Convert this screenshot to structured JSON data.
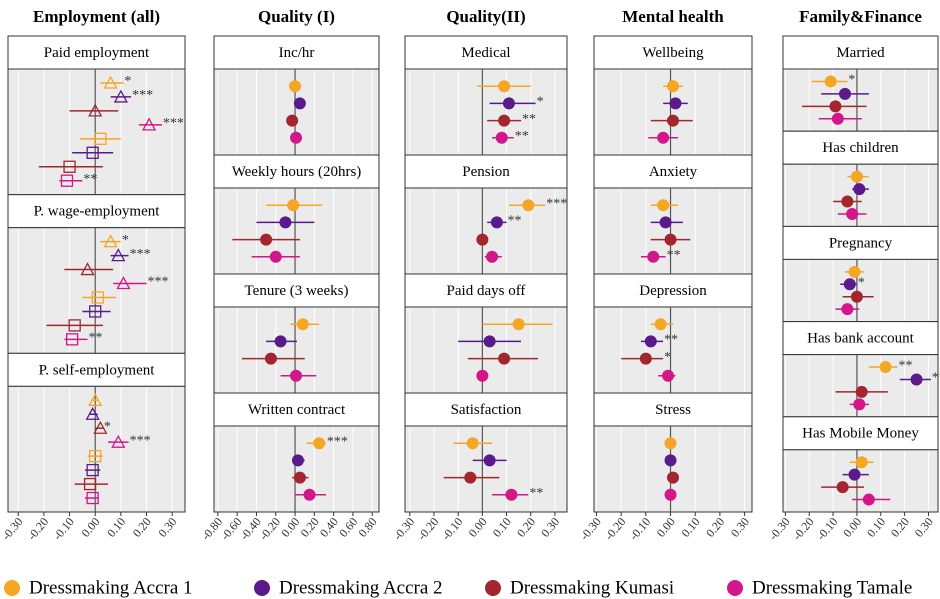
{
  "legend": [
    {
      "name": "Dressmaking Accra 1",
      "color": "#f5a623"
    },
    {
      "name": "Dressmaking Accra 2",
      "color": "#5b1a8c"
    },
    {
      "name": "Dressmaking Kumasi",
      "color": "#a3262f"
    },
    {
      "name": "Dressmaking Tamale",
      "color": "#d4168b"
    }
  ],
  "chart_data": [
    {
      "type": "dot",
      "title": "Employment (all)",
      "markers": [
        "triangle",
        "square"
      ],
      "xlim": [
        -0.34,
        0.35
      ],
      "xticks": [
        {
          "value": -0.3,
          "label": "-0.30"
        },
        {
          "value": -0.2,
          "label": "-0.20"
        },
        {
          "value": -0.1,
          "label": "-0.10"
        },
        {
          "value": 0,
          "label": "0.00"
        },
        {
          "value": 0.1,
          "label": "0.10"
        },
        {
          "value": 0.2,
          "label": "0.20"
        },
        {
          "value": 0.3,
          "label": "0.30"
        }
      ],
      "facets": [
        {
          "label": "Paid employment",
          "values": [
            0.06,
            0.1,
            0.0,
            0.21,
            0.02,
            -0.01,
            -0.1,
            -0.11
          ],
          "lower": [
            0.02,
            0.06,
            -0.1,
            0.17,
            -0.06,
            -0.09,
            -0.22,
            -0.14
          ],
          "upper": [
            0.11,
            0.14,
            0.09,
            0.26,
            0.1,
            0.07,
            0.03,
            -0.05
          ],
          "stars": [
            "*",
            "***",
            null,
            "***",
            null,
            null,
            null,
            "**"
          ]
        },
        {
          "label": "P. wage-employment",
          "values": [
            0.06,
            0.09,
            -0.03,
            0.11,
            0.01,
            0.0,
            -0.08,
            -0.09
          ],
          "lower": [
            0.02,
            0.06,
            -0.12,
            0.07,
            -0.05,
            -0.05,
            -0.19,
            -0.12
          ],
          "upper": [
            0.1,
            0.13,
            0.07,
            0.2,
            0.08,
            0.06,
            0.03,
            -0.03
          ],
          "stars": [
            "*",
            "***",
            null,
            "***",
            null,
            null,
            null,
            "**"
          ]
        },
        {
          "label": "P. self-employment",
          "values": [
            0.0,
            -0.01,
            0.02,
            0.09,
            0.0,
            -0.01,
            -0.02,
            -0.01
          ],
          "lower": [
            -0.01,
            -0.02,
            0.0,
            0.05,
            -0.03,
            -0.04,
            -0.08,
            -0.04
          ],
          "upper": [
            0.01,
            0.01,
            0.03,
            0.13,
            0.03,
            0.02,
            0.05,
            0.01
          ],
          "stars": [
            null,
            null,
            "*",
            "***",
            null,
            null,
            null,
            null
          ]
        }
      ]
    },
    {
      "type": "dot",
      "title": "Quality (I)",
      "markers": [
        "circle"
      ],
      "xlim": [
        -0.84,
        0.87
      ],
      "xticks": [
        {
          "value": -0.8,
          "label": "-0.80"
        },
        {
          "value": -0.6,
          "label": "-0.60"
        },
        {
          "value": -0.4,
          "label": "-0.40"
        },
        {
          "value": -0.2,
          "label": "-0.20"
        },
        {
          "value": 0,
          "label": "0.00"
        },
        {
          "value": 0.2,
          "label": "0.20"
        },
        {
          "value": 0.4,
          "label": "0.40"
        },
        {
          "value": 0.6,
          "label": "0.60"
        },
        {
          "value": 0.8,
          "label": "0.80"
        }
      ],
      "facets": [
        {
          "label": "Inc/hr",
          "values": [
            0.0,
            0.05,
            -0.03,
            0.01
          ],
          "lower": [
            -0.02,
            0.03,
            -0.05,
            -0.01
          ],
          "upper": [
            0.02,
            0.07,
            -0.01,
            0.03
          ],
          "stars": [
            null,
            null,
            null,
            null
          ]
        },
        {
          "label": "Weekly hours (20hrs)",
          "values": [
            -0.02,
            -0.1,
            -0.3,
            -0.2
          ],
          "lower": [
            -0.3,
            -0.4,
            -0.65,
            -0.45
          ],
          "upper": [
            0.28,
            0.2,
            0.05,
            0.05
          ],
          "stars": [
            null,
            null,
            null,
            null
          ]
        },
        {
          "label": "Tenure (3 weeks)",
          "values": [
            0.08,
            -0.15,
            -0.25,
            0.01
          ],
          "lower": [
            -0.05,
            -0.3,
            -0.55,
            -0.15
          ],
          "upper": [
            0.25,
            0.02,
            0.1,
            0.22
          ],
          "stars": [
            null,
            null,
            null,
            null
          ]
        },
        {
          "label": "Written contract",
          "values": [
            0.25,
            0.03,
            0.05,
            0.15
          ],
          "lower": [
            0.12,
            -0.03,
            -0.03,
            0.0
          ],
          "upper": [
            0.32,
            0.1,
            0.14,
            0.32
          ],
          "stars": [
            "***",
            null,
            null,
            null
          ]
        }
      ]
    },
    {
      "type": "dot",
      "title": "Quality(II)",
      "markers": [
        "circle"
      ],
      "xlim": [
        -0.32,
        0.35
      ],
      "xticks": [
        {
          "value": -0.3,
          "label": "-0.30"
        },
        {
          "value": -0.2,
          "label": "-0.20"
        },
        {
          "value": -0.1,
          "label": "-0.10"
        },
        {
          "value": 0,
          "label": "0.00"
        },
        {
          "value": 0.1,
          "label": "0.10"
        },
        {
          "value": 0.2,
          "label": "0.20"
        },
        {
          "value": 0.3,
          "label": "0.30"
        }
      ],
      "facets": [
        {
          "label": "Medical",
          "values": [
            0.09,
            0.11,
            0.09,
            0.08
          ],
          "lower": [
            -0.02,
            0.03,
            0.02,
            0.04
          ],
          "upper": [
            0.2,
            0.22,
            0.16,
            0.13
          ],
          "stars": [
            null,
            "*",
            "**",
            "**"
          ]
        },
        {
          "label": "Pension",
          "values": [
            0.19,
            0.06,
            0.0,
            0.04
          ],
          "lower": [
            0.11,
            0.02,
            -0.01,
            0.01
          ],
          "upper": [
            0.26,
            0.1,
            0.01,
            0.08
          ],
          "stars": [
            "***",
            "**",
            null,
            null
          ]
        },
        {
          "label": "Paid days off",
          "values": [
            0.15,
            0.03,
            0.09,
            0.0
          ],
          "lower": [
            0.0,
            -0.1,
            -0.06,
            -0.01
          ],
          "upper": [
            0.29,
            0.16,
            0.23,
            0.01
          ],
          "stars": [
            null,
            null,
            null,
            null
          ]
        },
        {
          "label": "Satisfaction",
          "values": [
            -0.04,
            0.03,
            -0.05,
            0.12
          ],
          "lower": [
            -0.12,
            -0.04,
            -0.16,
            0.04
          ],
          "upper": [
            0.04,
            0.1,
            0.07,
            0.19
          ],
          "stars": [
            null,
            null,
            null,
            "**"
          ]
        }
      ]
    },
    {
      "type": "dot",
      "title": "Mental health",
      "markers": [
        "circle"
      ],
      "xlim": [
        -0.31,
        0.33
      ],
      "xticks": [
        {
          "value": -0.3,
          "label": "-0.30"
        },
        {
          "value": -0.2,
          "label": "-0.20"
        },
        {
          "value": -0.1,
          "label": "-0.10"
        },
        {
          "value": 0,
          "label": "0.00"
        },
        {
          "value": 0.1,
          "label": "0.10"
        },
        {
          "value": 0.2,
          "label": "0.20"
        },
        {
          "value": 0.3,
          "label": "0.30"
        }
      ],
      "facets": [
        {
          "label": "Wellbeing",
          "values": [
            0.01,
            0.02,
            0.01,
            -0.03
          ],
          "lower": [
            -0.03,
            -0.03,
            -0.08,
            -0.09
          ],
          "upper": [
            0.05,
            0.07,
            0.09,
            0.03
          ],
          "stars": [
            null,
            null,
            null,
            null
          ]
        },
        {
          "label": "Anxiety",
          "values": [
            -0.03,
            -0.02,
            0.0,
            -0.07
          ],
          "lower": [
            -0.08,
            -0.08,
            -0.08,
            -0.12
          ],
          "upper": [
            0.03,
            0.05,
            0.08,
            -0.02
          ],
          "stars": [
            null,
            null,
            null,
            "**"
          ]
        },
        {
          "label": "Depression",
          "values": [
            -0.04,
            -0.08,
            -0.1,
            -0.01
          ],
          "lower": [
            -0.08,
            -0.12,
            -0.2,
            -0.05
          ],
          "upper": [
            0.01,
            -0.03,
            -0.03,
            0.02
          ],
          "stars": [
            null,
            "**",
            "*",
            null
          ]
        },
        {
          "label": "Stress",
          "values": [
            0.0,
            0.0,
            0.01,
            0.0
          ],
          "lower": [
            -0.01,
            -0.01,
            0.0,
            -0.01
          ],
          "upper": [
            0.01,
            0.01,
            0.02,
            0.01
          ],
          "stars": [
            null,
            null,
            null,
            null
          ]
        }
      ]
    },
    {
      "type": "dot",
      "title": "Family&Finance",
      "markers": [
        "circle"
      ],
      "xlim": [
        -0.31,
        0.34
      ],
      "xticks": [
        {
          "value": -0.3,
          "label": "-0.30"
        },
        {
          "value": -0.2,
          "label": "-0.20"
        },
        {
          "value": -0.1,
          "label": "-0.10"
        },
        {
          "value": 0,
          "label": "0.00"
        },
        {
          "value": 0.1,
          "label": "0.10"
        },
        {
          "value": 0.2,
          "label": "0.20"
        },
        {
          "value": 0.3,
          "label": "0.30"
        }
      ],
      "facets": [
        {
          "label": "Married",
          "values": [
            -0.11,
            -0.05,
            -0.09,
            -0.08
          ],
          "lower": [
            -0.19,
            -0.15,
            -0.23,
            -0.16
          ],
          "upper": [
            -0.04,
            0.05,
            0.04,
            0.02
          ],
          "stars": [
            "*",
            null,
            null,
            null
          ]
        },
        {
          "label": "Has children",
          "values": [
            0.0,
            0.01,
            -0.04,
            -0.02
          ],
          "lower": [
            -0.04,
            -0.02,
            -0.1,
            -0.08
          ],
          "upper": [
            0.05,
            0.05,
            0.02,
            0.04
          ],
          "stars": [
            null,
            null,
            null,
            null
          ]
        },
        {
          "label": "Pregnancy",
          "values": [
            -0.01,
            -0.03,
            0.0,
            -0.04
          ],
          "lower": [
            -0.05,
            -0.07,
            -0.06,
            -0.09
          ],
          "upper": [
            0.03,
            0.0,
            0.07,
            0.01
          ],
          "stars": [
            null,
            "*",
            null,
            null
          ]
        },
        {
          "label": "Has bank account",
          "values": [
            0.12,
            0.25,
            0.02,
            0.01
          ],
          "lower": [
            0.05,
            0.18,
            -0.09,
            -0.03
          ],
          "upper": [
            0.17,
            0.31,
            0.13,
            0.05
          ],
          "stars": [
            "**",
            "**",
            null,
            null
          ]
        },
        {
          "label": "Has Mobile Money",
          "values": [
            0.02,
            -0.01,
            -0.06,
            0.05
          ],
          "lower": [
            -0.03,
            -0.06,
            -0.15,
            -0.02
          ],
          "upper": [
            0.07,
            0.05,
            0.03,
            0.14
          ],
          "stars": [
            null,
            null,
            null,
            null
          ]
        }
      ]
    }
  ]
}
